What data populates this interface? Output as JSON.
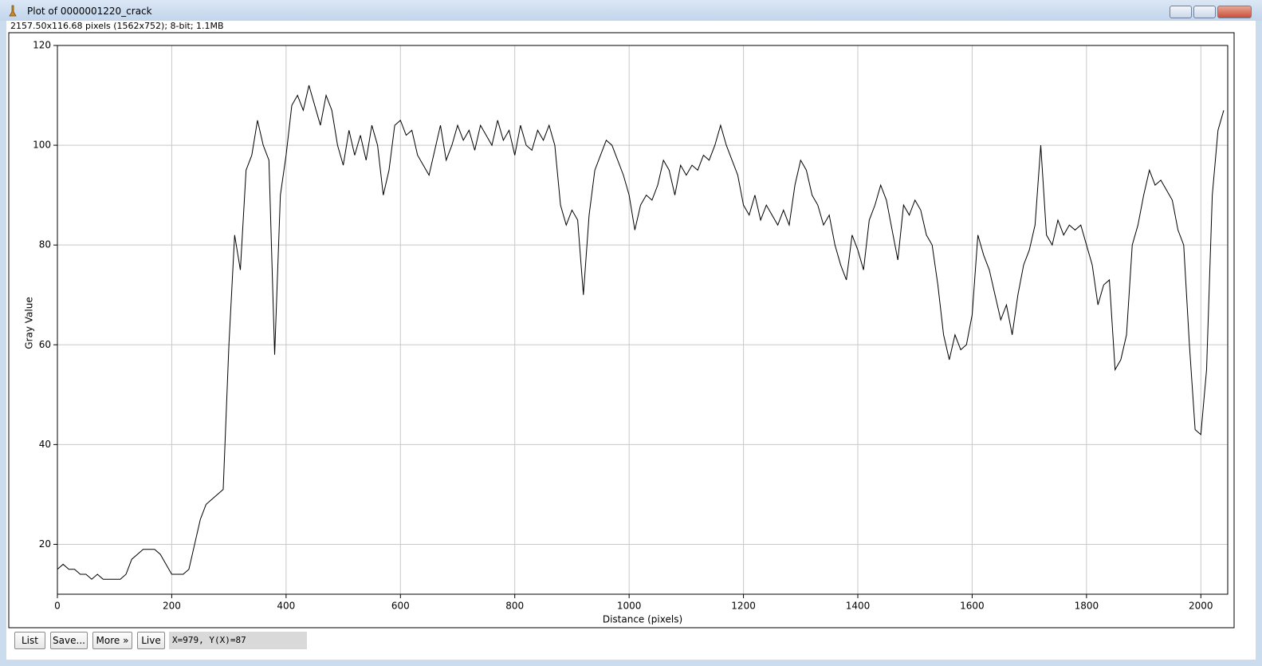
{
  "window": {
    "title": "Plot of 0000001220_crack",
    "info": "2157.50x116.68 pixels (1562x752); 8-bit; 1.1MB"
  },
  "chart_data": {
    "type": "line",
    "x_label": "Distance (pixels)",
    "y_label": "Gray Value",
    "color": "#000000",
    "grid": true,
    "xlim": [
      0,
      2047
    ],
    "ylim": [
      10,
      120
    ],
    "xticks": [
      0,
      200,
      400,
      600,
      800,
      1000,
      1200,
      1400,
      1600,
      1800,
      2000
    ],
    "yticks": [
      20,
      40,
      60,
      80,
      100,
      120
    ],
    "x": [
      0,
      10,
      20,
      30,
      40,
      50,
      60,
      70,
      80,
      90,
      100,
      110,
      120,
      130,
      140,
      150,
      160,
      170,
      180,
      190,
      200,
      210,
      220,
      230,
      240,
      250,
      260,
      270,
      280,
      290,
      300,
      310,
      320,
      330,
      340,
      350,
      360,
      370,
      380,
      390,
      400,
      410,
      420,
      430,
      440,
      450,
      460,
      470,
      480,
      490,
      500,
      510,
      520,
      530,
      540,
      550,
      560,
      570,
      580,
      590,
      600,
      610,
      620,
      630,
      640,
      650,
      660,
      670,
      680,
      690,
      700,
      710,
      720,
      730,
      740,
      750,
      760,
      770,
      780,
      790,
      800,
      810,
      820,
      830,
      840,
      850,
      860,
      870,
      880,
      890,
      900,
      910,
      920,
      930,
      940,
      950,
      960,
      970,
      980,
      990,
      1000,
      1010,
      1020,
      1030,
      1040,
      1050,
      1060,
      1070,
      1080,
      1090,
      1100,
      1110,
      1120,
      1130,
      1140,
      1150,
      1160,
      1170,
      1180,
      1190,
      1200,
      1210,
      1220,
      1230,
      1240,
      1250,
      1260,
      1270,
      1280,
      1290,
      1300,
      1310,
      1320,
      1330,
      1340,
      1350,
      1360,
      1370,
      1380,
      1390,
      1400,
      1410,
      1420,
      1430,
      1440,
      1450,
      1460,
      1470,
      1480,
      1490,
      1500,
      1510,
      1520,
      1530,
      1540,
      1550,
      1560,
      1570,
      1580,
      1590,
      1600,
      1610,
      1620,
      1630,
      1640,
      1650,
      1660,
      1670,
      1680,
      1690,
      1700,
      1710,
      1720,
      1730,
      1740,
      1750,
      1760,
      1770,
      1780,
      1790,
      1800,
      1810,
      1820,
      1830,
      1840,
      1850,
      1860,
      1870,
      1880,
      1890,
      1900,
      1910,
      1920,
      1930,
      1940,
      1950,
      1960,
      1970,
      1980,
      1990,
      2000,
      2010,
      2020,
      2030,
      2040
    ],
    "values": [
      15,
      16,
      15,
      15,
      14,
      14,
      13,
      14,
      13,
      13,
      13,
      13,
      14,
      17,
      18,
      19,
      19,
      19,
      18,
      16,
      14,
      14,
      14,
      15,
      20,
      25,
      28,
      29,
      30,
      31,
      60,
      82,
      75,
      95,
      98,
      105,
      100,
      97,
      58,
      90,
      98,
      108,
      110,
      107,
      112,
      108,
      104,
      110,
      107,
      100,
      96,
      103,
      98,
      102,
      97,
      104,
      100,
      90,
      95,
      104,
      105,
      102,
      103,
      98,
      96,
      94,
      99,
      104,
      97,
      100,
      104,
      101,
      103,
      99,
      104,
      102,
      100,
      105,
      101,
      103,
      98,
      104,
      100,
      99,
      103,
      101,
      104,
      100,
      88,
      84,
      87,
      85,
      70,
      86,
      95,
      98,
      101,
      100,
      97,
      94,
      90,
      83,
      88,
      90,
      89,
      92,
      97,
      95,
      90,
      96,
      94,
      96,
      95,
      98,
      97,
      100,
      104,
      100,
      97,
      94,
      88,
      86,
      90,
      85,
      88,
      86,
      84,
      87,
      84,
      92,
      97,
      95,
      90,
      88,
      84,
      86,
      80,
      76,
      73,
      82,
      79,
      75,
      85,
      88,
      92,
      89,
      83,
      77,
      88,
      86,
      89,
      87,
      82,
      80,
      72,
      62,
      57,
      62,
      59,
      60,
      66,
      82,
      78,
      75,
      70,
      65,
      68,
      62,
      70,
      76,
      79,
      84,
      100,
      82,
      80,
      85,
      82,
      84,
      83,
      84,
      80,
      76,
      68,
      72,
      73,
      55,
      57,
      62,
      80,
      84,
      90,
      95,
      92,
      93,
      91,
      89,
      83,
      80,
      60,
      43,
      42,
      55,
      90,
      103,
      107
    ]
  },
  "buttons": [
    "List",
    "Save...",
    "More »",
    "Live"
  ],
  "status": "X=979, Y(X)=87"
}
